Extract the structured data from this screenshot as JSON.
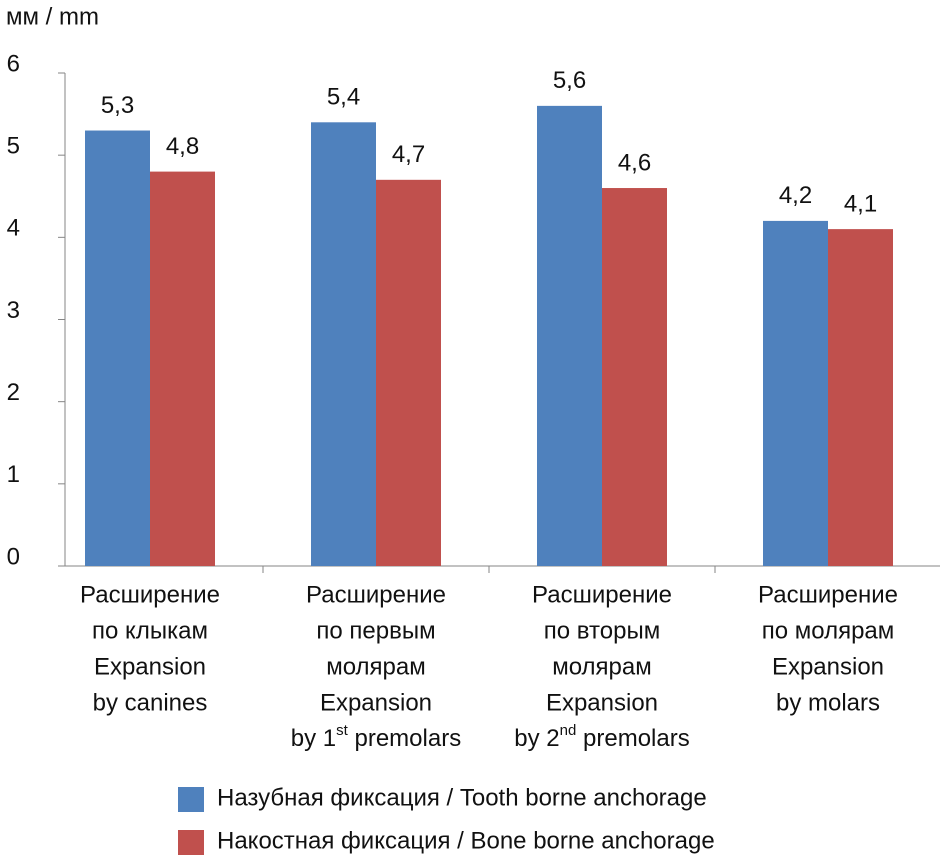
{
  "chart_data": {
    "type": "bar",
    "y_label": "мм / mm",
    "categories": [
      [
        "Расширение",
        "по клыкам",
        "Expansion",
        "by canines"
      ],
      [
        "Расширение",
        "по первым",
        "молярам",
        "Expansion",
        "by 1st premolars"
      ],
      [
        "Расширение",
        "по вторым",
        "молярам",
        "Expansion",
        "by 2nd premolars"
      ],
      [
        "Расширение",
        "по молярам",
        "Expansion",
        "by molars"
      ]
    ],
    "series": [
      {
        "name": "Назубная фиксация / Tooth borne anchorage",
        "color": "#4f81bd",
        "values": [
          5.3,
          5.4,
          5.6,
          4.2
        ],
        "value_labels": [
          "5,3",
          "5,4",
          "5,6",
          "4,2"
        ]
      },
      {
        "name": "Накостная фиксация / Bone borne anchorage",
        "color": "#c0504d",
        "values": [
          4.8,
          4.7,
          4.6,
          4.1
        ],
        "value_labels": [
          "4,8",
          "4,7",
          "4,6",
          "4,1"
        ]
      }
    ],
    "ylim": [
      0,
      6
    ],
    "yticks": [
      0,
      1,
      2,
      3,
      4,
      5,
      6
    ],
    "grid": false,
    "legend": "bottom"
  }
}
